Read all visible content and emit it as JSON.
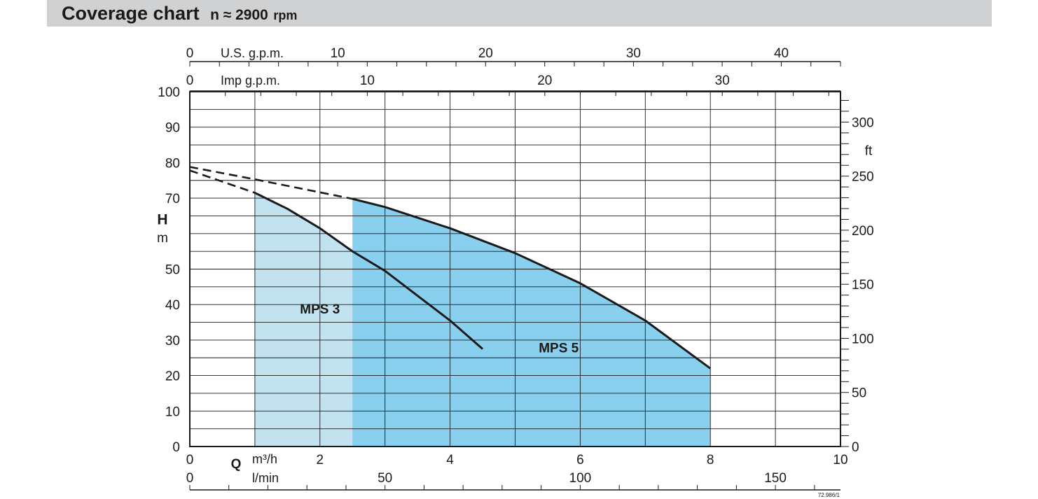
{
  "header": {
    "title": "Coverage chart",
    "speed_label": "n ≈ 2900",
    "speed_unit": "rpm"
  },
  "colors": {
    "header_bg": "#d0d1d3",
    "mps3_fill": "#c3e2ef",
    "mps5_fill": "#88d0ee",
    "curve": "#1a1a1a",
    "grid": "#1a1a1a"
  },
  "chart_data": {
    "type": "area",
    "title": "",
    "grid": true,
    "x_primary": {
      "label": "m³/h",
      "axis_letter": "Q",
      "range": [
        0,
        10
      ],
      "ticks": [
        0,
        2,
        4,
        6,
        8,
        10
      ],
      "gridlines": [
        0,
        1,
        2,
        3,
        4,
        5,
        6,
        7,
        8,
        9,
        10
      ]
    },
    "x_secondary_lmin": {
      "label": "l/min",
      "range": [
        0,
        166.67
      ],
      "ticks": [
        0,
        50,
        100,
        150
      ],
      "minor_step": 10
    },
    "x_top_usgpm": {
      "label": "U.S. g.p.m.",
      "range": [
        0,
        44
      ],
      "ticks": [
        0,
        10,
        20,
        30,
        40
      ],
      "minor_step": 2
    },
    "x_top_impgpm": {
      "label": "Imp g.p.m.",
      "range": [
        0,
        36.66
      ],
      "ticks": [
        0,
        10,
        20,
        30
      ],
      "minor_step": 2
    },
    "y_left": {
      "label_letter": "H",
      "label_unit": "m",
      "range": [
        0,
        100
      ],
      "ticks": [
        0,
        10,
        20,
        30,
        40,
        50,
        70,
        80,
        90,
        100
      ],
      "gridlines_step": 5
    },
    "y_right": {
      "label": "ft",
      "range": [
        0,
        328.08
      ],
      "ticks": [
        0,
        50,
        100,
        150,
        200,
        250,
        300
      ],
      "minor_step": 10
    },
    "series": [
      {
        "name": "MPS 3",
        "label_pos": [
          2.0,
          37.5
        ],
        "region_x": [
          1.0,
          4.5
        ],
        "curve": [
          [
            1.0,
            71.5
          ],
          [
            1.5,
            67
          ],
          [
            2.0,
            61.5
          ],
          [
            2.5,
            55
          ],
          [
            3.0,
            49.5
          ],
          [
            3.5,
            42.5
          ],
          [
            4.0,
            35.5
          ],
          [
            4.5,
            27.5
          ]
        ],
        "dashed_extension": [
          [
            0,
            77.8
          ],
          [
            1.0,
            71.5
          ]
        ]
      },
      {
        "name": "MPS 5",
        "label_pos": [
          5.67,
          26.5
        ],
        "region_x": [
          2.5,
          8.0
        ],
        "curve": [
          [
            2.5,
            69.8
          ],
          [
            3.0,
            67.5
          ],
          [
            4.0,
            61.5
          ],
          [
            5.0,
            54.5
          ],
          [
            6.0,
            46
          ],
          [
            7.0,
            35.5
          ],
          [
            8.0,
            22
          ]
        ],
        "dashed_extension": [
          [
            0,
            78.8
          ],
          [
            1.0,
            75.3
          ],
          [
            2.5,
            69.8
          ]
        ]
      }
    ],
    "annotations": [
      "72.986/1"
    ]
  }
}
